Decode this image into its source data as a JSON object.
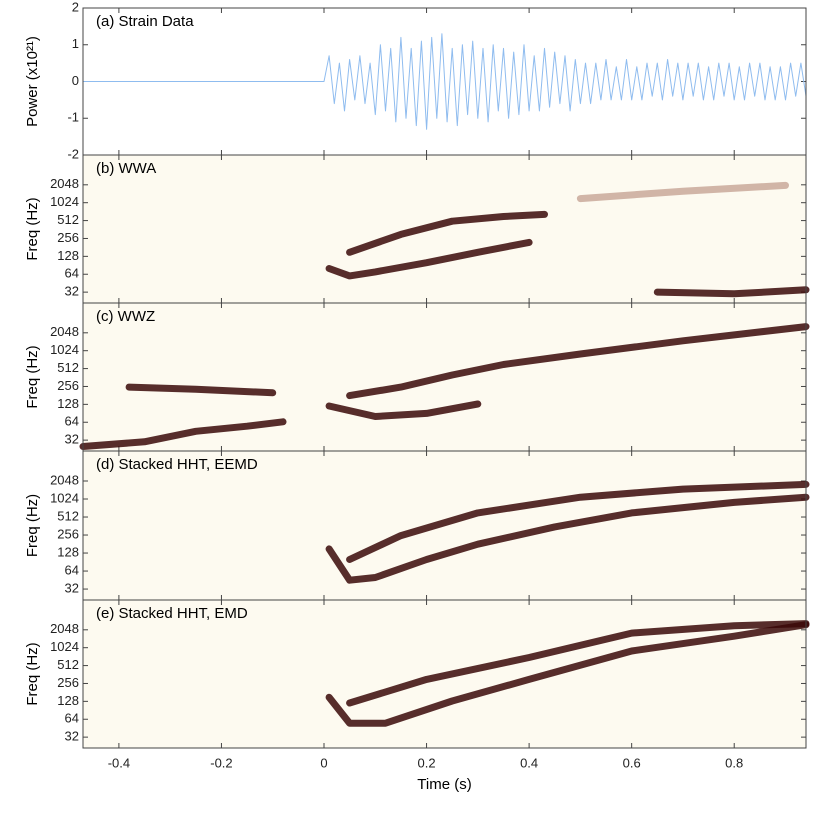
{
  "chart_data": [
    {
      "type": "line",
      "title": "(a) Strain Data",
      "ylabel": "Power (x10²¹)",
      "xlim": [
        -0.47,
        0.94
      ],
      "ylim": [
        -2,
        2
      ],
      "yticks": [
        -2,
        -1,
        0,
        1,
        2
      ],
      "background": "#ffffff",
      "series": [
        {
          "color": "#8fbcef",
          "x": [
            -0.47,
            0,
            0.01,
            0.02,
            0.03,
            0.04,
            0.05,
            0.06,
            0.07,
            0.08,
            0.09,
            0.1,
            0.11,
            0.12,
            0.13,
            0.14,
            0.15,
            0.16,
            0.17,
            0.18,
            0.19,
            0.2,
            0.21,
            0.22,
            0.23,
            0.24,
            0.25,
            0.26,
            0.27,
            0.28,
            0.29,
            0.3,
            0.31,
            0.32,
            0.33,
            0.34,
            0.35,
            0.36,
            0.37,
            0.38,
            0.39,
            0.4,
            0.41,
            0.42,
            0.43,
            0.44,
            0.45,
            0.46,
            0.47,
            0.48,
            0.49,
            0.5,
            0.51,
            0.52,
            0.53,
            0.54,
            0.55,
            0.56,
            0.57,
            0.58,
            0.59,
            0.6,
            0.61,
            0.62,
            0.63,
            0.64,
            0.65,
            0.66,
            0.67,
            0.68,
            0.69,
            0.7,
            0.71,
            0.72,
            0.73,
            0.74,
            0.75,
            0.76,
            0.77,
            0.78,
            0.79,
            0.8,
            0.81,
            0.82,
            0.83,
            0.84,
            0.85,
            0.86,
            0.87,
            0.88,
            0.89,
            0.9,
            0.91,
            0.92,
            0.93,
            0.94
          ],
          "values": [
            0,
            0,
            0.7,
            -0.6,
            0.5,
            -0.8,
            0.6,
            -0.5,
            0.7,
            -0.6,
            0.5,
            -0.9,
            1.0,
            -0.8,
            0.9,
            -1.1,
            1.2,
            -1.0,
            0.9,
            -1.2,
            1.1,
            -1.3,
            1.2,
            -1.0,
            1.3,
            -1.1,
            0.9,
            -1.2,
            1.0,
            -0.9,
            1.1,
            -1.0,
            0.9,
            -1.1,
            1.0,
            -0.8,
            0.9,
            -1.0,
            0.8,
            -0.9,
            1.0,
            -0.8,
            0.7,
            -0.8,
            0.9,
            -0.7,
            0.8,
            -0.6,
            0.7,
            -0.8,
            0.6,
            -0.6,
            0.5,
            -0.6,
            0.5,
            -0.5,
            0.6,
            -0.5,
            0.4,
            -0.5,
            0.6,
            -0.5,
            0.4,
            -0.5,
            0.5,
            -0.4,
            0.5,
            -0.5,
            0.6,
            -0.4,
            0.5,
            -0.5,
            0.5,
            -0.4,
            0.5,
            -0.5,
            0.4,
            -0.5,
            0.5,
            -0.4,
            0.5,
            -0.5,
            0.4,
            -0.5,
            0.5,
            -0.4,
            0.5,
            -0.5,
            0.4,
            -0.5,
            0.4,
            -0.5,
            0.5,
            -0.4,
            0.5,
            -0.4
          ]
        }
      ]
    },
    {
      "type": "line",
      "title": "(b) WWA",
      "ylabel": "Freq (Hz)",
      "log_y": true,
      "xlim": [
        -0.47,
        0.94
      ],
      "ylim": [
        21,
        6500
      ],
      "yticks": [
        32,
        64,
        128,
        256,
        512,
        1024,
        2048
      ],
      "background": "#fdfaf0",
      "series": [
        {
          "color": "#3a0808",
          "x": [
            0.01,
            0.05,
            0.1,
            0.2,
            0.3,
            0.4
          ],
          "values": [
            80,
            60,
            70,
            100,
            150,
            220
          ]
        },
        {
          "color": "#3a0808",
          "x": [
            0.05,
            0.15,
            0.25,
            0.35,
            0.43
          ],
          "values": [
            150,
            300,
            500,
            600,
            650
          ]
        },
        {
          "color": "#3a0808",
          "x": [
            0.65,
            0.8,
            0.94
          ],
          "values": [
            32,
            30,
            35
          ]
        },
        {
          "color": "#c9a89a",
          "x": [
            0.5,
            0.7,
            0.9
          ],
          "values": [
            1200,
            1600,
            2000
          ]
        }
      ]
    },
    {
      "type": "line",
      "title": "(c) WWZ",
      "ylabel": "Freq (Hz)",
      "log_y": true,
      "xlim": [
        -0.47,
        0.94
      ],
      "ylim": [
        21,
        6500
      ],
      "yticks": [
        32,
        64,
        128,
        256,
        512,
        1024,
        2048
      ],
      "background": "#fdfaf0",
      "series": [
        {
          "color": "#3a0808",
          "x": [
            -0.47,
            -0.35,
            -0.25,
            -0.15,
            -0.08
          ],
          "values": [
            25,
            30,
            45,
            55,
            65
          ]
        },
        {
          "color": "#3a0808",
          "x": [
            -0.38,
            -0.25,
            -0.1
          ],
          "values": [
            250,
            230,
            200
          ]
        },
        {
          "color": "#3a0808",
          "x": [
            0.01,
            0.1,
            0.2,
            0.3
          ],
          "values": [
            120,
            80,
            90,
            130
          ]
        },
        {
          "color": "#3a0808",
          "x": [
            0.05,
            0.15,
            0.25,
            0.35,
            0.5,
            0.7,
            0.94
          ],
          "values": [
            180,
            250,
            400,
            600,
            900,
            1500,
            2600
          ]
        }
      ]
    },
    {
      "type": "line",
      "title": "(d) Stacked HHT, EEMD",
      "ylabel": "Freq (Hz)",
      "log_y": true,
      "xlim": [
        -0.47,
        0.94
      ],
      "ylim": [
        21,
        6500
      ],
      "yticks": [
        32,
        64,
        128,
        256,
        512,
        1024,
        2048
      ],
      "background": "#fdfaf0",
      "series": [
        {
          "color": "#3a0808",
          "x": [
            0.01,
            0.05,
            0.1,
            0.2,
            0.3,
            0.45,
            0.6,
            0.8,
            0.94
          ],
          "values": [
            150,
            45,
            50,
            100,
            180,
            350,
            600,
            900,
            1100
          ]
        },
        {
          "color": "#3a0808",
          "x": [
            0.05,
            0.15,
            0.3,
            0.5,
            0.7,
            0.94
          ],
          "values": [
            100,
            250,
            600,
            1100,
            1500,
            1800
          ]
        }
      ]
    },
    {
      "type": "line",
      "title": "(e) Stacked HHT, EMD",
      "ylabel": "Freq (Hz)",
      "log_y": true,
      "xlim": [
        -0.47,
        0.94
      ],
      "ylim": [
        21,
        6500
      ],
      "yticks": [
        32,
        64,
        128,
        256,
        512,
        1024,
        2048
      ],
      "background": "#fdfaf0",
      "xlabel": "Time (s)",
      "xticks": [
        -0.4,
        -0.2,
        0,
        0.2,
        0.4,
        0.6,
        0.8
      ],
      "series": [
        {
          "color": "#3a0808",
          "x": [
            0.01,
            0.05,
            0.12,
            0.25,
            0.4,
            0.6,
            0.8,
            0.94
          ],
          "values": [
            150,
            55,
            55,
            130,
            300,
            900,
            1600,
            2500
          ]
        },
        {
          "color": "#3a0808",
          "x": [
            0.05,
            0.2,
            0.4,
            0.6,
            0.8,
            0.94
          ],
          "values": [
            120,
            300,
            700,
            1800,
            2400,
            2600
          ]
        }
      ]
    }
  ]
}
